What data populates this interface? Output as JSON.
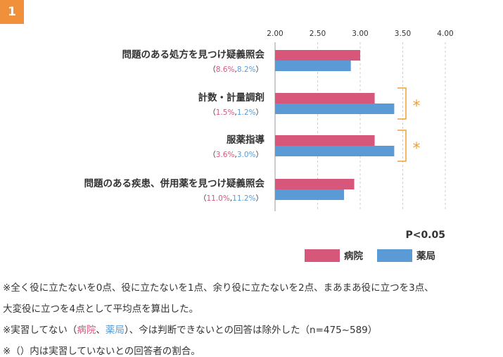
{
  "badge": {
    "label": "1",
    "color": "#f0903a"
  },
  "colors": {
    "hospital": "#d6577a",
    "pharmacy": "#5b9bd5",
    "bracket": "#f0a030",
    "grid": "#cccccc"
  },
  "chart_data": {
    "type": "bar",
    "orientation": "horizontal",
    "xlim": [
      2.0,
      4.0
    ],
    "ticks": [
      "2.00",
      "2.50",
      "3.00",
      "3.50",
      "4.00"
    ],
    "tick_values": [
      2.0,
      2.5,
      3.0,
      3.5,
      4.0
    ],
    "grid": true,
    "categories": [
      {
        "label": "問題のある処方を見つけ疑義照会",
        "hosp_pct": "8.6%",
        "phar_pct": "8.2%"
      },
      {
        "label": "計数・計量調剤",
        "hosp_pct": "1.5%",
        "phar_pct": "1.2%"
      },
      {
        "label": "服薬指導",
        "hosp_pct": "3.6%",
        "phar_pct": "3.0%"
      },
      {
        "label": "問題のある疾患、併用薬を見つけ疑義照会",
        "hosp_pct": "11.0%",
        "phar_pct": "11.2%"
      }
    ],
    "series": [
      {
        "name": "病院",
        "color": "#d6577a",
        "values": [
          3.0,
          3.17,
          3.17,
          2.93
        ]
      },
      {
        "name": "薬局",
        "color": "#5b9bd5",
        "values": [
          2.89,
          3.4,
          3.4,
          2.81
        ]
      }
    ],
    "significance": {
      "marker": "*",
      "rows": [
        1,
        2
      ]
    },
    "p_label": "P<0.05",
    "legend_placement": "bottom-right"
  },
  "notes": {
    "line1": "※全く役に立たないを0点、役に立たないを1点、余り役に立たないを2点、まあまあ役に立つを3点、",
    "line2": "大変役に立つを4点として平均点を算出した。",
    "line3_a": "※実習してない（",
    "line3_hosp": "病院",
    "line3_sep": "、",
    "line3_phar": "薬局",
    "line3_b": "）、今は判断できないとの回答は除外した（n=475~589）",
    "line4": "※（）内は実習していないとの回答者の割合。"
  }
}
